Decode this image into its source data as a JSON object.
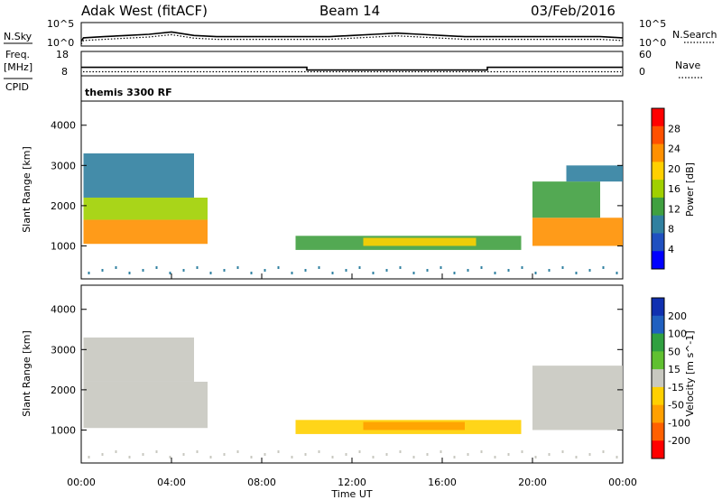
{
  "header": {
    "station": "Adak West (fitACF)",
    "beam": "Beam 14",
    "date": "03/Feb/2016"
  },
  "side_labels": {
    "nsky": "N.Sky",
    "nsearch": "N.Search",
    "freq_line1": "Freq.",
    "freq_line2": "[MHz]",
    "cpid": "CPID",
    "nave": "Nave",
    "cpid_value": "themis 3300 RF"
  },
  "chart_data": [
    {
      "type": "line",
      "name": "noise",
      "ylabels_left": [
        "10^5",
        "10^0"
      ],
      "ylabels_right": [
        "10^5",
        "10^0"
      ],
      "x_hours": [
        0,
        0.1,
        1,
        2,
        3,
        4,
        5,
        6,
        7,
        8,
        9,
        10,
        11,
        12,
        13,
        14,
        15,
        16,
        17,
        18,
        19,
        20,
        21,
        22,
        23,
        24
      ],
      "nsky_level": [
        0.2,
        0.35,
        0.4,
        0.45,
        0.5,
        0.6,
        0.45,
        0.4,
        0.4,
        0.4,
        0.4,
        0.4,
        0.4,
        0.45,
        0.5,
        0.55,
        0.5,
        0.45,
        0.4,
        0.4,
        0.4,
        0.4,
        0.4,
        0.4,
        0.4,
        0.35
      ]
    },
    {
      "type": "line",
      "name": "frequency",
      "yticks_left": [
        "18",
        "8"
      ],
      "yticks_right": [
        "60",
        "0"
      ],
      "freq_segments": [
        {
          "from": 0,
          "to": 10,
          "mhz": 11.5
        },
        {
          "from": 10,
          "to": 18,
          "mhz": 10.4
        },
        {
          "from": 18,
          "to": 24,
          "mhz": 11.5
        }
      ],
      "nave_level": 10
    },
    {
      "type": "heatmap",
      "name": "power",
      "ylabel": "Slant Range [km]",
      "yticks": [
        1000,
        2000,
        3000,
        4000
      ],
      "ylim": [
        180,
        4600
      ],
      "colorbar_label": "Power [dB]",
      "colorbar_ticks": [
        "28",
        "24",
        "20",
        "16",
        "12",
        "8",
        "4"
      ],
      "colorbar_colors": [
        "#ff0000",
        "#ff5000",
        "#ff9000",
        "#ffd000",
        "#a0d000",
        "#40a040",
        "#3080a0",
        "#2050c0",
        "#0000ff"
      ],
      "regions": [
        {
          "t0": 0.1,
          "t1": 5.6,
          "r0": 1050,
          "r1": 1650,
          "power": 24
        },
        {
          "t0": 0.1,
          "t1": 5.6,
          "r0": 1650,
          "r1": 2200,
          "power": 14
        },
        {
          "t0": 0.1,
          "t1": 5.0,
          "r0": 2200,
          "r1": 3300,
          "power": 6
        },
        {
          "t0": 9.5,
          "t1": 19.5,
          "r0": 900,
          "r1": 1250,
          "power": 12
        },
        {
          "t0": 12.5,
          "t1": 17.5,
          "r0": 1000,
          "r1": 1200,
          "power": 18
        },
        {
          "t0": 20.0,
          "t1": 24.0,
          "r0": 1000,
          "r1": 1700,
          "power": 24
        },
        {
          "t0": 20.0,
          "t1": 23.0,
          "r0": 1700,
          "r1": 2600,
          "power": 12
        },
        {
          "t0": 21.5,
          "t1": 24.0,
          "r0": 2600,
          "r1": 3000,
          "power": 6
        }
      ]
    },
    {
      "type": "heatmap",
      "name": "velocity",
      "ylabel": "Slant Range [km]",
      "yticks": [
        1000,
        2000,
        3000,
        4000
      ],
      "ylim": [
        180,
        4600
      ],
      "colorbar_label": "Velocity [m s^-1]",
      "colorbar_ticks": [
        "200",
        "100",
        "50",
        "15",
        "-15",
        "-50",
        "-100",
        "-200"
      ],
      "colorbar_colors": [
        "#1030b0",
        "#2060c0",
        "#30a040",
        "#60c030",
        "#c8c8c0",
        "#ffd000",
        "#ffa000",
        "#ff6000",
        "#ff0000"
      ],
      "regions": [
        {
          "t0": 0.1,
          "t1": 5.6,
          "r0": 1050,
          "r1": 2200,
          "velocity": 0
        },
        {
          "t0": 0.1,
          "t1": 5.0,
          "r0": 2200,
          "r1": 3300,
          "velocity": 0
        },
        {
          "t0": 9.5,
          "t1": 19.5,
          "r0": 900,
          "r1": 1250,
          "velocity": -40
        },
        {
          "t0": 12.5,
          "t1": 17.0,
          "r0": 1000,
          "r1": 1200,
          "velocity": -70
        },
        {
          "t0": 20.0,
          "t1": 24.0,
          "r0": 1000,
          "r1": 2600,
          "velocity": 0
        }
      ]
    }
  ],
  "x_axis": {
    "ticks": [
      "00:00",
      "04:00",
      "08:00",
      "12:00",
      "16:00",
      "20:00",
      "00:00"
    ],
    "label": "Time UT"
  }
}
